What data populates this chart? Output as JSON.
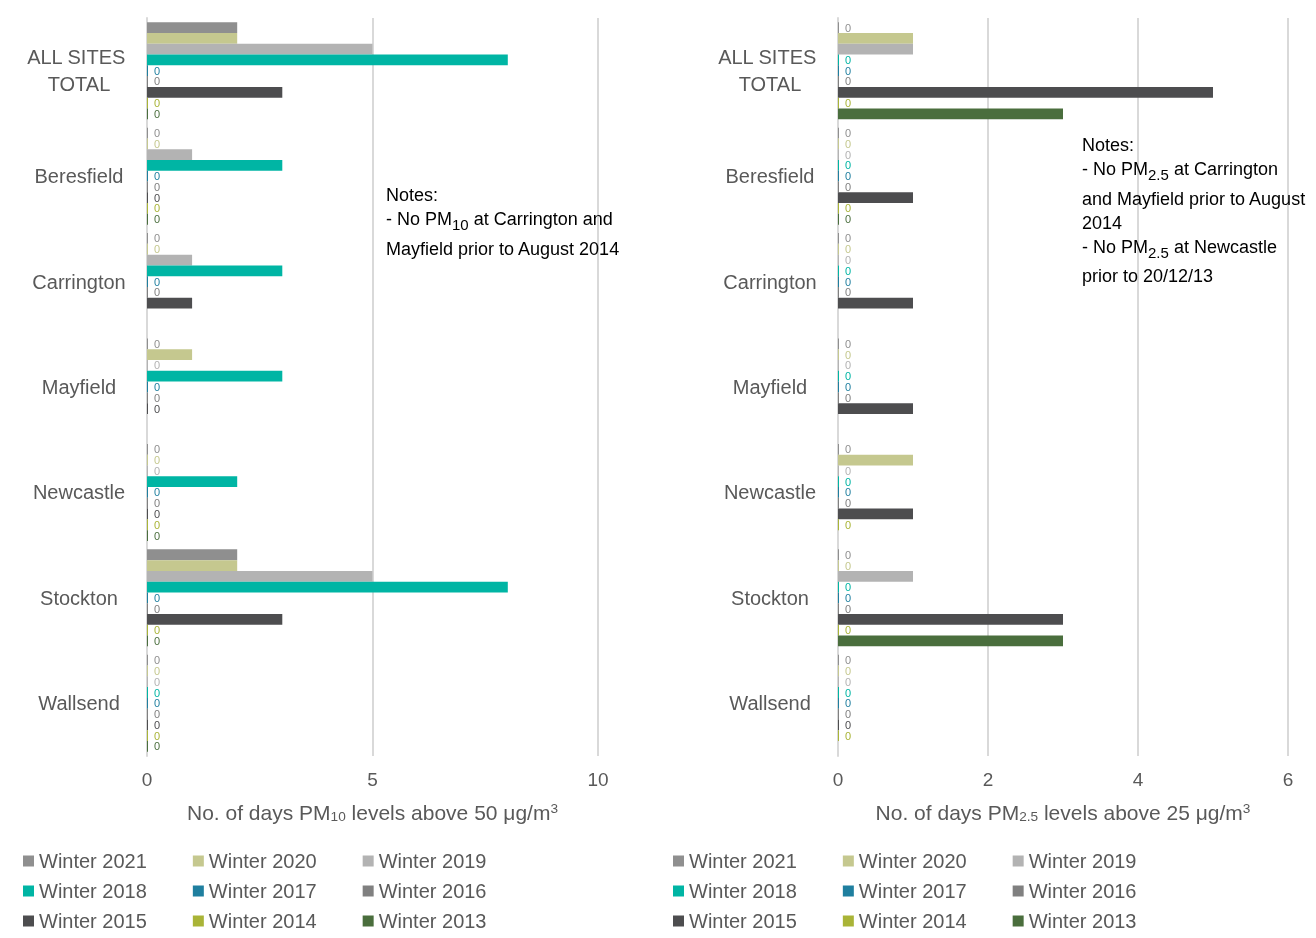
{
  "chart_data": [
    {
      "type": "bar",
      "orientation": "horizontal",
      "xlabel": "No. of days PM$_{10}$ levels above 50 μg/m$^{3}$",
      "categories": [
        "ALL SITES TOTAL",
        "Beresfield",
        "Carrington",
        "Mayfield",
        "Newcastle",
        "Stockton",
        "Wallsend"
      ],
      "xlim": [
        0,
        10
      ],
      "xticks": [
        0,
        5,
        10
      ],
      "grid": "x",
      "legend": "bottom",
      "annotations": [
        "Notes:",
        "- No PM$_{10}$ at Carrington and Mayfield prior to August 2014"
      ],
      "series": [
        {
          "name": "Winter 2021",
          "color": "#8f8f8f",
          "values": [
            2,
            0,
            0,
            0,
            0,
            2,
            0
          ],
          "value_labels": [
            null,
            "0",
            "0",
            "0",
            "0",
            null,
            "0"
          ]
        },
        {
          "name": "Winter 2020",
          "color": "#c5c88f",
          "values": [
            2,
            0,
            0,
            1,
            0,
            2,
            0
          ],
          "value_labels": [
            null,
            "0",
            "0",
            null,
            "0",
            null,
            "0"
          ]
        },
        {
          "name": "Winter 2019",
          "color": "#b3b3b3",
          "values": [
            5,
            1,
            1,
            0,
            0,
            5,
            0
          ],
          "value_labels": [
            null,
            null,
            null,
            "0",
            "0",
            null,
            "0"
          ]
        },
        {
          "name": "Winter 2018",
          "color": "#00b5a4",
          "values": [
            8,
            3,
            3,
            3,
            2,
            8,
            0
          ],
          "value_labels": [
            null,
            null,
            null,
            null,
            null,
            null,
            "0"
          ]
        },
        {
          "name": "Winter 2017",
          "color": "#1f7f9f",
          "values": [
            0,
            0,
            0,
            0,
            0,
            0,
            0
          ],
          "value_labels": [
            "0",
            "0",
            "0",
            "0",
            "0",
            "0",
            "0"
          ]
        },
        {
          "name": "Winter 2016",
          "color": "#808080",
          "values": [
            0,
            0,
            0,
            0,
            0,
            0,
            0
          ],
          "value_labels": [
            "0",
            "0",
            "0",
            "0",
            "0",
            "0",
            "0"
          ]
        },
        {
          "name": "Winter 2015",
          "color": "#4d4d4f",
          "values": [
            3,
            0,
            1,
            0,
            0,
            3,
            0
          ],
          "value_labels": [
            null,
            "0",
            null,
            "0",
            "0",
            null,
            "0"
          ]
        },
        {
          "name": "Winter 2014",
          "color": "#a9b437",
          "values": [
            0,
            0,
            null,
            null,
            0,
            0,
            0
          ],
          "value_labels": [
            "0",
            "0",
            null,
            null,
            "0",
            "0",
            "0"
          ]
        },
        {
          "name": "Winter 2013",
          "color": "#4a6e3d",
          "values": [
            0,
            0,
            null,
            null,
            0,
            0,
            0
          ],
          "value_labels": [
            "0",
            "0",
            null,
            null,
            "0",
            "0",
            "0"
          ]
        }
      ]
    },
    {
      "type": "bar",
      "orientation": "horizontal",
      "xlabel": "No. of days PM$_{2.5}$ levels above 25 μg/m$^{3}$",
      "categories": [
        "ALL SITES TOTAL",
        "Beresfield",
        "Carrington",
        "Mayfield",
        "Newcastle",
        "Stockton",
        "Wallsend"
      ],
      "xlim": [
        0,
        6
      ],
      "xticks": [
        0,
        2,
        4,
        6
      ],
      "grid": "x",
      "legend": "bottom",
      "annotations": [
        "Notes:",
        "- No PM$_{2.5}$ at Carrington and Mayfield prior to August 2014",
        "- No PM$_{2.5}$ at Newcastle prior to 20/12/13"
      ],
      "series": [
        {
          "name": "Winter 2021",
          "color": "#8f8f8f",
          "values": [
            0,
            0,
            0,
            0,
            0,
            0,
            0
          ],
          "value_labels": [
            "0",
            "0",
            "0",
            "0",
            "0",
            "0",
            "0"
          ]
        },
        {
          "name": "Winter 2020",
          "color": "#c5c88f",
          "values": [
            1,
            0,
            0,
            0,
            1,
            0,
            0
          ],
          "value_labels": [
            null,
            "0",
            "0",
            "0",
            null,
            "0",
            "0"
          ]
        },
        {
          "name": "Winter 2019",
          "color": "#b3b3b3",
          "values": [
            1,
            0,
            0,
            0,
            0,
            1,
            0
          ],
          "value_labels": [
            null,
            "0",
            "0",
            "0",
            "0",
            null,
            "0"
          ]
        },
        {
          "name": "Winter 2018",
          "color": "#00b5a4",
          "values": [
            0,
            0,
            0,
            0,
            0,
            0,
            0
          ],
          "value_labels": [
            "0",
            "0",
            "0",
            "0",
            "0",
            "0",
            "0"
          ]
        },
        {
          "name": "Winter 2017",
          "color": "#1f7f9f",
          "values": [
            0,
            0,
            0,
            0,
            0,
            0,
            0
          ],
          "value_labels": [
            "0",
            "0",
            "0",
            "0",
            "0",
            "0",
            "0"
          ]
        },
        {
          "name": "Winter 2016",
          "color": "#808080",
          "values": [
            0,
            0,
            0,
            0,
            0,
            0,
            0
          ],
          "value_labels": [
            "0",
            "0",
            "0",
            "0",
            "0",
            "0",
            "0"
          ]
        },
        {
          "name": "Winter 2015",
          "color": "#4d4d4f",
          "values": [
            5,
            1,
            1,
            1,
            1,
            3,
            0
          ],
          "value_labels": [
            null,
            null,
            null,
            null,
            null,
            null,
            "0"
          ]
        },
        {
          "name": "Winter 2014",
          "color": "#a9b437",
          "values": [
            0,
            0,
            null,
            null,
            0,
            0,
            0
          ],
          "value_labels": [
            "0",
            "0",
            null,
            null,
            "0",
            "0",
            "0"
          ]
        },
        {
          "name": "Winter 2013",
          "color": "#4a6e3d",
          "values": [
            3,
            0,
            null,
            null,
            null,
            3,
            null
          ],
          "value_labels": [
            null,
            "0",
            null,
            null,
            null,
            null,
            null
          ]
        }
      ]
    }
  ]
}
